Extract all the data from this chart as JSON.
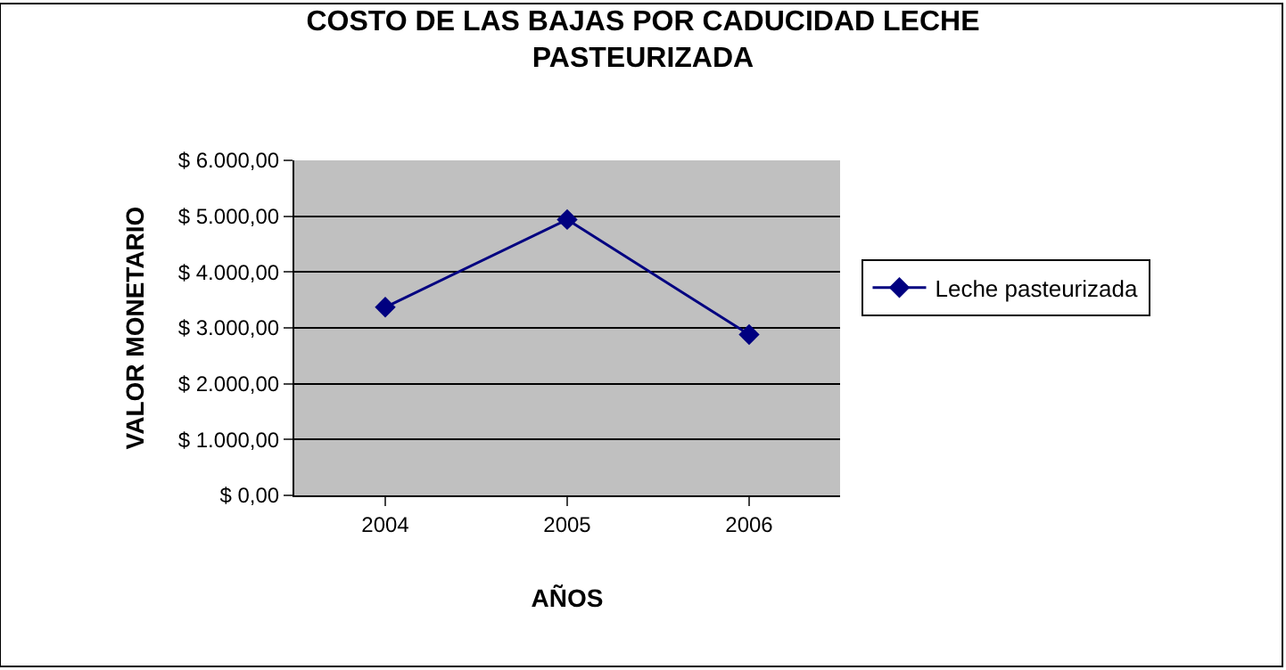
{
  "chart_data": {
    "type": "line",
    "title": "COSTO DE LAS BAJAS POR CADUCIDAD LECHE PASTEURIZADA",
    "xlabel": "AÑOS",
    "ylabel": "VALOR MONETARIO",
    "categories": [
      "2004",
      "2005",
      "2006"
    ],
    "series": [
      {
        "name": "Leche pasteurizada",
        "color": "#000080",
        "values": [
          3370,
          4940,
          2880
        ]
      }
    ],
    "ylim": [
      0,
      6000
    ],
    "yticks": [
      {
        "value": 0,
        "label": "$ 0,00"
      },
      {
        "value": 1000,
        "label": "$ 1.000,00"
      },
      {
        "value": 2000,
        "label": "$ 2.000,00"
      },
      {
        "value": 3000,
        "label": "$ 3.000,00"
      },
      {
        "value": 4000,
        "label": "$ 4.000,00"
      },
      {
        "value": 5000,
        "label": "$ 5.000,00"
      },
      {
        "value": 6000,
        "label": "$ 6.000,00"
      }
    ],
    "grid": "y",
    "legend": "right",
    "marker": "diamond",
    "line_style": "solid"
  }
}
